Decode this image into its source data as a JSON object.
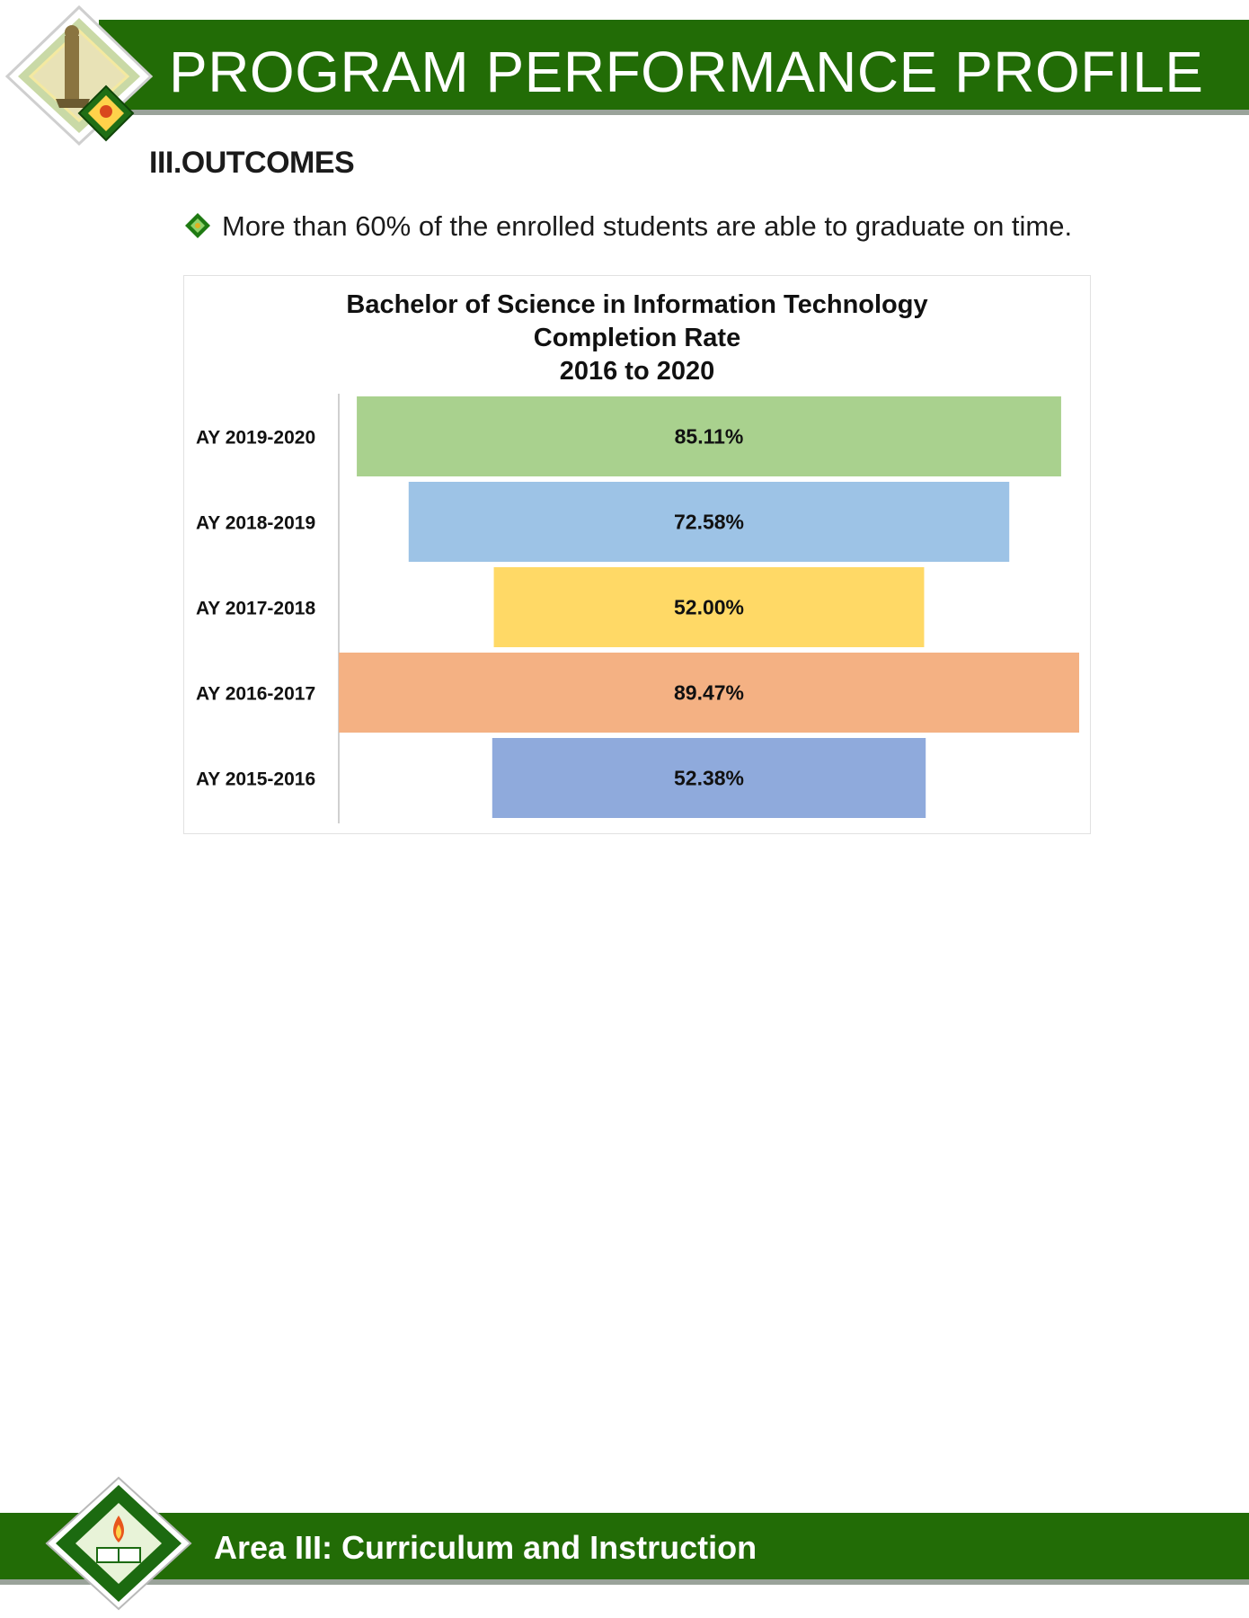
{
  "header": {
    "title": "PROGRAM PERFORMANCE PROFILE"
  },
  "section": {
    "heading": "III.OUTCOMES",
    "bullet": "More than 60% of the enrolled students are able to graduate on time."
  },
  "colors": {
    "brand_green": "#226c06",
    "stripe_gray": "#9aa39a"
  },
  "icons": {
    "header_logo": "university-seal-icon",
    "bullet": "diamond-bullet-icon",
    "footer_logo": "university-seal-icon"
  },
  "chart_data": {
    "type": "bar",
    "orientation": "horizontal-centered",
    "title_lines": [
      "Bachelor of Science in Information Technology",
      "Completion Rate",
      "2016 to 2020"
    ],
    "categories": [
      "AY 2019-2020",
      "AY 2018-2019",
      "AY 2017-2018",
      "AY 2016-2017",
      "AY 2015-2016"
    ],
    "values": [
      85.11,
      72.58,
      52.0,
      89.47,
      52.38
    ],
    "value_labels": [
      "85.11%",
      "72.58%",
      "52.00%",
      "89.47%",
      "52.38%"
    ],
    "colors": [
      "#a9d18e",
      "#9dc3e6",
      "#ffd966",
      "#f4b183",
      "#8faadc"
    ],
    "xlim": [
      0,
      89.47
    ],
    "grid": false,
    "legend": "none"
  },
  "footer": {
    "title": "Area III: Curriculum and Instruction"
  }
}
